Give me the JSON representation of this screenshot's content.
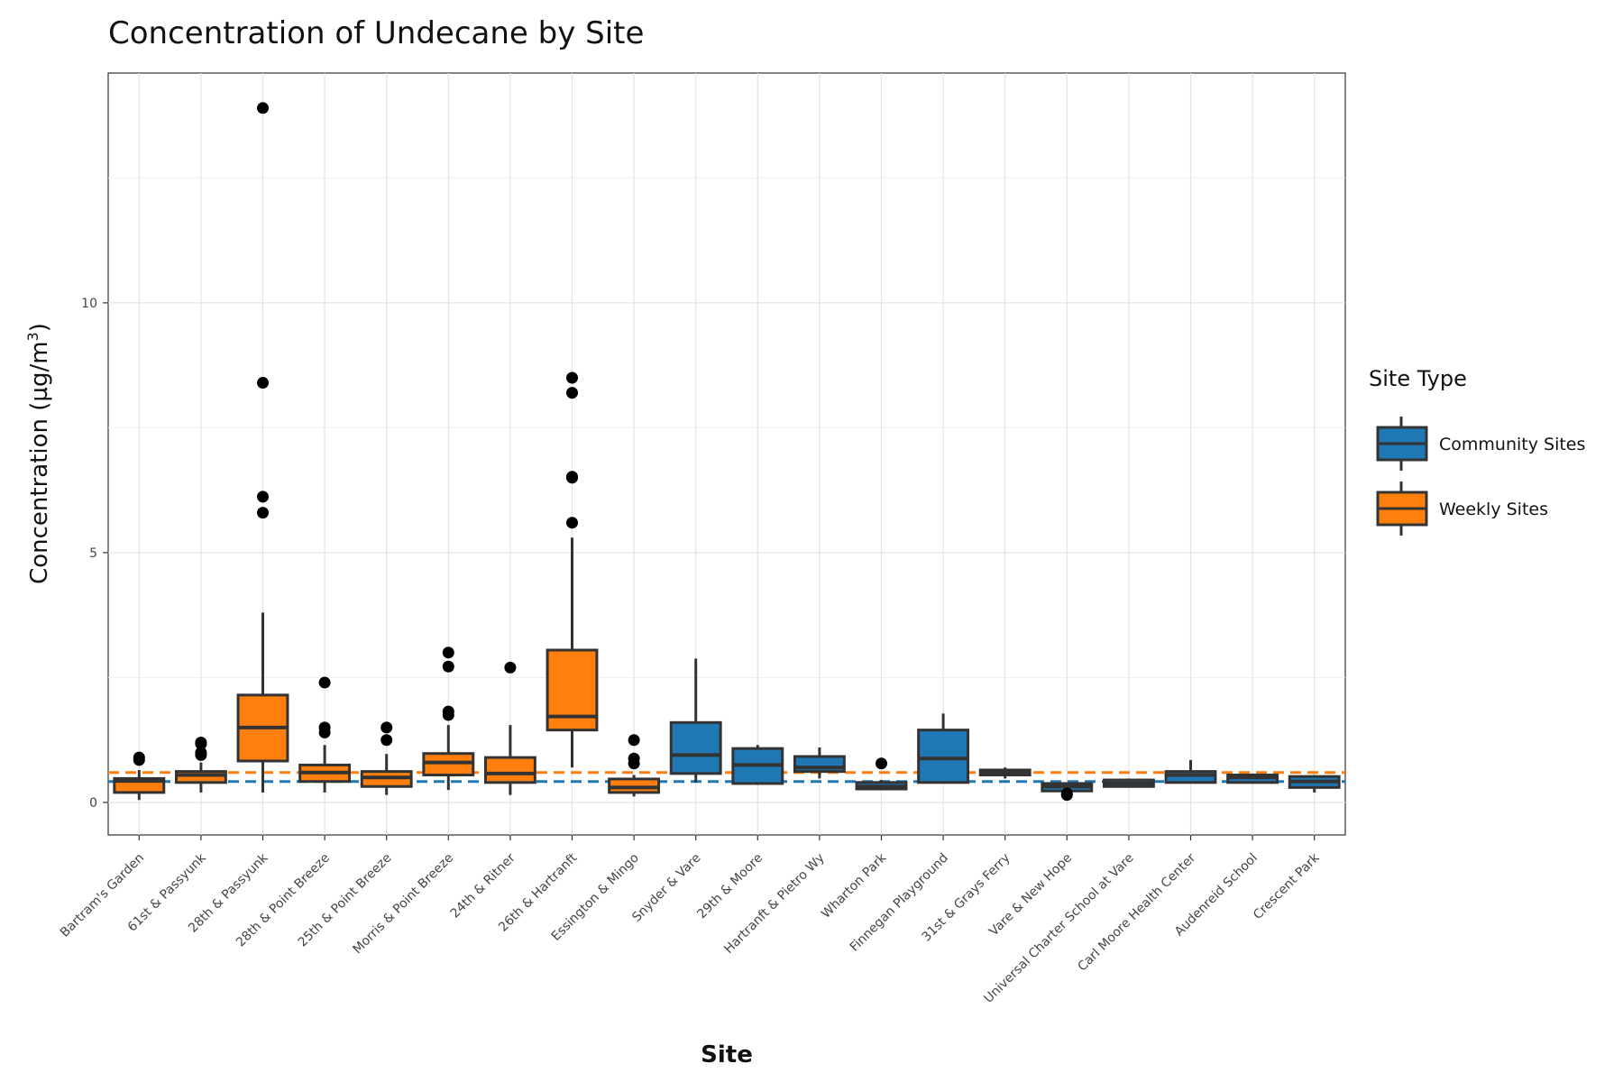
{
  "chart_data": {
    "type": "box",
    "title": "Concentration of Undecane by Site",
    "xlabel": "Site",
    "ylabel": "Concentration (µg/m",
    "ylabel_sup": "3",
    "ylabel_close": ")",
    "ylim": [
      -0.65,
      14.6
    ],
    "yticks": [
      0,
      5,
      10
    ],
    "grid": true,
    "legend": {
      "title": "Site Type",
      "placement": "right",
      "entries": [
        {
          "label": "Community Sites",
          "color": "#1f77b4"
        },
        {
          "label": "Weekly Sites",
          "color": "#ff7f0e"
        }
      ]
    },
    "reference_lines": [
      {
        "series": "Community Sites",
        "value": 0.42,
        "color": "#1f77b4"
      },
      {
        "series": "Weekly Sites",
        "value": 0.6,
        "color": "#ff7f0e"
      }
    ],
    "boxes": [
      {
        "site": "Bartram's Garden",
        "type": "Weekly Sites",
        "lower_whisker": 0.05,
        "q1": 0.2,
        "median": 0.43,
        "q3": 0.48,
        "upper_whisker": 0.65,
        "outliers": [
          0.85,
          0.9
        ]
      },
      {
        "site": "61st & Passyunk",
        "type": "Weekly Sites",
        "lower_whisker": 0.2,
        "q1": 0.4,
        "median": 0.55,
        "q3": 0.62,
        "upper_whisker": 0.8,
        "outliers": [
          0.95,
          1.0,
          1.17,
          1.2
        ]
      },
      {
        "site": "28th & Passyunk",
        "type": "Weekly Sites",
        "lower_whisker": 0.2,
        "q1": 0.83,
        "median": 1.5,
        "q3": 2.15,
        "upper_whisker": 3.8,
        "outliers": [
          5.8,
          6.12,
          8.4,
          13.9
        ]
      },
      {
        "site": "28th & Point Breeze",
        "type": "Weekly Sites",
        "lower_whisker": 0.2,
        "q1": 0.42,
        "median": 0.6,
        "q3": 0.75,
        "upper_whisker": 1.15,
        "outliers": [
          1.4,
          1.5,
          2.4
        ]
      },
      {
        "site": "25th & Point Breeze",
        "type": "Weekly Sites",
        "lower_whisker": 0.15,
        "q1": 0.32,
        "median": 0.5,
        "q3": 0.62,
        "upper_whisker": 0.97,
        "outliers": [
          1.25,
          1.5
        ]
      },
      {
        "site": "Morris & Point Breeze",
        "type": "Weekly Sites",
        "lower_whisker": 0.25,
        "q1": 0.55,
        "median": 0.8,
        "q3": 0.98,
        "upper_whisker": 1.55,
        "outliers": [
          1.75,
          1.82,
          2.72,
          3.0
        ]
      },
      {
        "site": "24th & Ritner",
        "type": "Weekly Sites",
        "lower_whisker": 0.15,
        "q1": 0.4,
        "median": 0.58,
        "q3": 0.9,
        "upper_whisker": 1.55,
        "outliers": [
          2.7
        ]
      },
      {
        "site": "26th & Hartranft",
        "type": "Weekly Sites",
        "lower_whisker": 0.7,
        "q1": 1.45,
        "median": 1.72,
        "q3": 3.05,
        "upper_whisker": 5.3,
        "outliers": [
          5.6,
          6.5,
          6.52,
          8.2,
          8.5
        ]
      },
      {
        "site": "Essington & Mingo",
        "type": "Weekly Sites",
        "lower_whisker": 0.12,
        "q1": 0.2,
        "median": 0.3,
        "q3": 0.47,
        "upper_whisker": 0.55,
        "outliers": [
          0.78,
          0.88,
          1.25
        ]
      },
      {
        "site": "Snyder & Vare",
        "type": "Community Sites",
        "lower_whisker": 0.4,
        "q1": 0.58,
        "median": 0.95,
        "q3": 1.6,
        "upper_whisker": 2.88,
        "outliers": []
      },
      {
        "site": "29th & Moore",
        "type": "Community Sites",
        "lower_whisker": 0.35,
        "q1": 0.38,
        "median": 0.75,
        "q3": 1.08,
        "upper_whisker": 1.15,
        "outliers": []
      },
      {
        "site": "Hartranft & Pietro Wy",
        "type": "Community Sites",
        "lower_whisker": 0.48,
        "q1": 0.62,
        "median": 0.7,
        "q3": 0.92,
        "upper_whisker": 1.1,
        "outliers": []
      },
      {
        "site": "Wharton Park",
        "type": "Community Sites",
        "lower_whisker": 0.25,
        "q1": 0.27,
        "median": 0.32,
        "q3": 0.4,
        "upper_whisker": 0.45,
        "outliers": [
          0.78
        ]
      },
      {
        "site": "Finnegan Playground",
        "type": "Community Sites",
        "lower_whisker": 0.4,
        "q1": 0.4,
        "median": 0.88,
        "q3": 1.45,
        "upper_whisker": 1.78,
        "outliers": []
      },
      {
        "site": "31st & Grays Ferry",
        "type": "Community Sites",
        "lower_whisker": 0.48,
        "q1": 0.55,
        "median": 0.6,
        "q3": 0.65,
        "upper_whisker": 0.7,
        "outliers": []
      },
      {
        "site": "Vare & New Hope",
        "type": "Community Sites",
        "lower_whisker": 0.2,
        "q1": 0.23,
        "median": 0.32,
        "q3": 0.38,
        "upper_whisker": 0.4,
        "outliers": [
          0.15,
          0.18
        ]
      },
      {
        "site": "Universal Charter School at Vare",
        "type": "Community Sites",
        "lower_whisker": 0.3,
        "q1": 0.32,
        "median": 0.38,
        "q3": 0.45,
        "upper_whisker": 0.48,
        "outliers": []
      },
      {
        "site": "Carl Moore Health Center",
        "type": "Community Sites",
        "lower_whisker": 0.4,
        "q1": 0.4,
        "median": 0.55,
        "q3": 0.62,
        "upper_whisker": 0.85,
        "outliers": []
      },
      {
        "site": "Audenreid School",
        "type": "Community Sites",
        "lower_whisker": 0.38,
        "q1": 0.4,
        "median": 0.5,
        "q3": 0.55,
        "upper_whisker": 0.58,
        "outliers": []
      },
      {
        "site": "Crescent Park",
        "type": "Community Sites",
        "lower_whisker": 0.2,
        "q1": 0.3,
        "median": 0.42,
        "q3": 0.52,
        "upper_whisker": 0.55,
        "outliers": []
      }
    ]
  }
}
